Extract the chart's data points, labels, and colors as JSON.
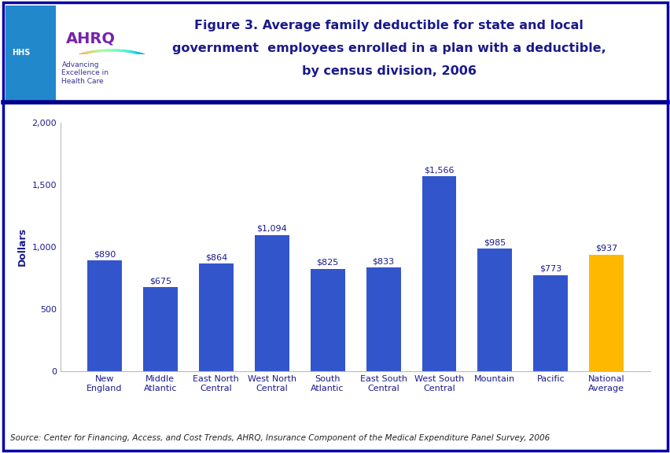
{
  "categories": [
    "New\nEngland",
    "Middle\nAtlantic",
    "East North\nCentral",
    "West North\nCentral",
    "South\nAtlantic",
    "East South\nCentral",
    "West South\nCentral",
    "Mountain",
    "Pacific",
    "National\nAverage"
  ],
  "values": [
    890,
    675,
    864,
    1094,
    825,
    833,
    1566,
    985,
    773,
    937
  ],
  "labels": [
    "$890",
    "$675",
    "$864",
    "$1,094",
    "$825",
    "$833",
    "$1,566",
    "$985",
    "$773",
    "$937"
  ],
  "bar_colors": [
    "#3355CC",
    "#3355CC",
    "#3355CC",
    "#3355CC",
    "#3355CC",
    "#3355CC",
    "#3355CC",
    "#3355CC",
    "#3355CC",
    "#FFB800"
  ],
  "title_line1": "Figure 3. Average family deductible for state and local",
  "title_line2": "government  employees enrolled in a plan with a deductible,",
  "title_line3": "by census division, 2006",
  "ylabel": "Dollars",
  "ylim": [
    0,
    2000
  ],
  "yticks": [
    0,
    500,
    1000,
    1500,
    2000
  ],
  "ytick_labels": [
    "0",
    "500",
    "1,000",
    "1,500",
    "2,000"
  ],
  "source_text": "Source: Center for Financing, Access, and Cost Trends, AHRQ, Insurance Component of the Medical Expenditure Panel Survey, 2006",
  "fig_background": "#FFFFFF",
  "chart_background": "#FFFFFF",
  "bar_label_fontsize": 8,
  "axis_label_fontsize": 8,
  "title_fontsize": 11.5,
  "title_color": "#1A1A8C",
  "ylabel_color": "#1A1A8C",
  "tick_label_color": "#1A1A8C",
  "source_fontsize": 7.5,
  "border_color": "#0000AA",
  "separator_color": "#00008B",
  "header_bg": "#FFFFFF",
  "hhs_bg": "#2288CC"
}
